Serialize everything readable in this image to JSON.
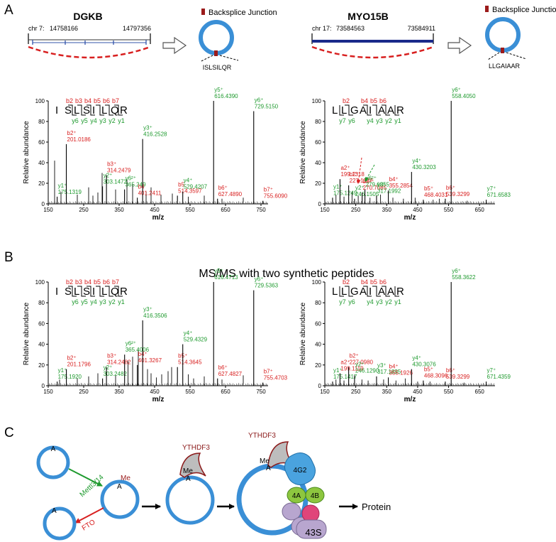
{
  "colors": {
    "red": "#d82020",
    "green": "#1e9a2e",
    "blue": "#3a8fd6",
    "darkred": "#9b1b1b",
    "navy": "#1a2a8a",
    "trans_green": "#8dc63f",
    "trans_blue": "#4aa3df",
    "pink": "#e0457a",
    "lavender": "#b8a6cf",
    "gray": "#bdbdbd"
  },
  "panel_labels": [
    "A",
    "B",
    "C"
  ],
  "panelA": {
    "genes": [
      {
        "name": "DGKB",
        "chr": "chr 7:",
        "start": "14758166",
        "end": "14797356",
        "junction_peptide": "ISLSILQR",
        "legend": "Backsplice Junction"
      },
      {
        "name": "MYO15B",
        "chr": "chr 17:",
        "start": "73584563",
        "end": "73584911",
        "junction_peptide": "LLGAIAAR",
        "legend": "Backsplice Junction"
      }
    ]
  },
  "panelB_title": "MS/MS with two synthetic peptides",
  "axis": {
    "ylabel": "Relative abundance",
    "xlabel": "m/z"
  },
  "chart_data": [
    {
      "type": "bar",
      "panel": "A-left",
      "peptide": "ISLSILQR",
      "b_ions": [
        "b2",
        "b3",
        "b4",
        "b5",
        "b6",
        "b7"
      ],
      "y_ions": [
        "y6",
        "y5",
        "y4",
        "y3",
        "y2",
        "y1"
      ],
      "xlim": [
        150,
        770
      ],
      "ylim": [
        0,
        100
      ],
      "xticks": [
        150,
        250,
        350,
        450,
        550,
        650,
        750
      ],
      "yticks": [
        0,
        20,
        40,
        60,
        80,
        100
      ],
      "labeled_peaks": [
        {
          "x": 175.1319,
          "y": 7,
          "ion": "y1⁺",
          "label": "175.1319",
          "color": "green"
        },
        {
          "x": 201.0186,
          "y": 58,
          "ion": "b2⁺",
          "label": "201.0186",
          "color": "red"
        },
        {
          "x": 303.1472,
          "y": 17,
          "ion": "y2⁺",
          "label": "303.1472",
          "color": "green"
        },
        {
          "x": 314.2479,
          "y": 28,
          "ion": "b3⁺",
          "label": "314.2479",
          "color": "red"
        },
        {
          "x": 365.249,
          "y": 14,
          "ion": "y6²⁺",
          "label": "365.249",
          "color": "green"
        },
        {
          "x": 401.2411,
          "y": 6,
          "ion": "b4",
          "label": "401.2411",
          "color": "red"
        },
        {
          "x": 416.2528,
          "y": 63,
          "ion": "y3⁺",
          "label": "416.2528",
          "color": "green"
        },
        {
          "x": 514.3597,
          "y": 8,
          "ion": "b5",
          "label": "514.3597",
          "color": "red"
        },
        {
          "x": 529.4207,
          "y": 12,
          "ion": "y4⁺",
          "label": "529.4207",
          "color": "green"
        },
        {
          "x": 616.439,
          "y": 100,
          "ion": "y5⁺",
          "label": "616.4390",
          "color": "green"
        },
        {
          "x": 627.489,
          "y": 5,
          "ion": "b6⁺",
          "label": "627.4890",
          "color": "red"
        },
        {
          "x": 729.515,
          "y": 90,
          "ion": "y6⁺",
          "label": "729.5150",
          "color": "green"
        },
        {
          "x": 755.609,
          "y": 3,
          "ion": "b7⁺",
          "label": "755.6090",
          "color": "red"
        }
      ],
      "other_peaks": [
        [
          168,
          42
        ],
        [
          186,
          12
        ],
        [
          232,
          9
        ],
        [
          264,
          16
        ],
        [
          276,
          8
        ],
        [
          290,
          11
        ],
        [
          302,
          30
        ],
        [
          340,
          14
        ],
        [
          372,
          24
        ],
        [
          388,
          19
        ],
        [
          426,
          12
        ],
        [
          440,
          16
        ],
        [
          468,
          9
        ],
        [
          500,
          10
        ],
        [
          545,
          7
        ],
        [
          590,
          8
        ],
        [
          640,
          5
        ],
        [
          700,
          6
        ]
      ]
    },
    {
      "type": "bar",
      "panel": "A-right",
      "peptide": "LLGAIAAR",
      "b_ions": [
        "b2",
        "b4",
        "b5",
        "b6"
      ],
      "y_ions": [
        "y7",
        "y6",
        "y4",
        "y3",
        "y2",
        "y1"
      ],
      "xlim": [
        150,
        700
      ],
      "ylim": [
        0,
        100
      ],
      "xticks": [
        150,
        250,
        350,
        450,
        550,
        650
      ],
      "yticks": [
        0,
        20,
        40,
        60,
        80,
        100
      ],
      "labeled_peaks": [
        {
          "x": 175.1249,
          "y": 6,
          "ion": "y1⁺",
          "label": "175.1249",
          "color": "green"
        },
        {
          "x": 199.1318,
          "y": 24,
          "ion": "a2⁺",
          "label": "199.1318",
          "color": "red"
        },
        {
          "x": 227.1127,
          "y": 18,
          "ion": "b2⁺",
          "label": "227.1127",
          "color": "red"
        },
        {
          "x": 246.1505,
          "y": 5,
          "ion": "y2⁺",
          "label": "246.1505",
          "color": "green"
        },
        {
          "x": 270.7085,
          "y": 11,
          "ion": "b6²⁺",
          "label": "270.7085",
          "color": "red"
        },
        {
          "x": 279.6855,
          "y": 14,
          "ion": "y6²⁺",
          "label": "279.6855",
          "color": "green"
        },
        {
          "x": 317.1992,
          "y": 8,
          "ion": "y3⁺",
          "label": "317.1992",
          "color": "green"
        },
        {
          "x": 355.2854,
          "y": 13,
          "ion": "b4⁺",
          "label": "355.2854",
          "color": "red"
        },
        {
          "x": 430.3203,
          "y": 31,
          "ion": "y4⁺",
          "label": "430.3203",
          "color": "green"
        },
        {
          "x": 468.4031,
          "y": 4,
          "ion": "b5⁺",
          "label": "468.4031",
          "color": "red"
        },
        {
          "x": 539.3299,
          "y": 5,
          "ion": "b6⁺",
          "label": "539.3299",
          "color": "red"
        },
        {
          "x": 558.405,
          "y": 100,
          "ion": "y6⁺",
          "label": "558.4050",
          "color": "green"
        },
        {
          "x": 671.6583,
          "y": 4,
          "ion": "y7⁺",
          "label": "671.6583",
          "color": "green"
        }
      ],
      "other_peaks": [
        [
          186,
          9
        ],
        [
          212,
          7
        ],
        [
          238,
          12
        ],
        [
          258,
          8
        ],
        [
          296,
          6
        ],
        [
          330,
          9
        ],
        [
          370,
          6
        ],
        [
          404,
          5
        ],
        [
          442,
          6
        ],
        [
          500,
          4
        ],
        [
          520,
          5
        ],
        [
          610,
          3
        ]
      ]
    },
    {
      "type": "bar",
      "panel": "B-left",
      "peptide": "ISLSILQR",
      "b_ions": [
        "b2",
        "b3",
        "b4",
        "b5",
        "b6",
        "b7"
      ],
      "y_ions": [
        "y6",
        "y5",
        "y4",
        "y3",
        "y2",
        "y1"
      ],
      "xlim": [
        150,
        770
      ],
      "ylim": [
        0,
        100
      ],
      "xticks": [
        150,
        250,
        350,
        450,
        550,
        650,
        750
      ],
      "yticks": [
        0,
        20,
        40,
        60,
        80,
        100
      ],
      "labeled_peaks": [
        {
          "x": 175.192,
          "y": 4,
          "ion": "y1⁺",
          "label": "175.1920",
          "color": "green"
        },
        {
          "x": 201.1796,
          "y": 16,
          "ion": "b2⁺",
          "label": "201.1796",
          "color": "red"
        },
        {
          "x": 303.2482,
          "y": 7,
          "ion": "y2⁺",
          "label": "303.2482",
          "color": "green"
        },
        {
          "x": 314.2482,
          "y": 18,
          "ion": "b3⁺",
          "label": "314.2482",
          "color": "red"
        },
        {
          "x": 365.4006,
          "y": 30,
          "ion": "y6²⁺",
          "label": "365.4006",
          "color": "green"
        },
        {
          "x": 401.3267,
          "y": 20,
          "ion": "b4⁺",
          "label": "401.3267",
          "color": "red"
        },
        {
          "x": 416.3506,
          "y": 63,
          "ion": "y3⁺",
          "label": "416.3506",
          "color": "green"
        },
        {
          "x": 514.3645,
          "y": 18,
          "ion": "b5⁺",
          "label": "514.3645",
          "color": "red"
        },
        {
          "x": 529.4329,
          "y": 40,
          "ion": "y4⁺",
          "label": "529.4329",
          "color": "green"
        },
        {
          "x": 616.4713,
          "y": 100,
          "ion": "y5⁺",
          "label": "616.4713",
          "color": "green"
        },
        {
          "x": 627.4827,
          "y": 7,
          "ion": "b6⁺",
          "label": "627.4827",
          "color": "red"
        },
        {
          "x": 729.5363,
          "y": 92,
          "ion": "y6⁺",
          "label": "729.5363",
          "color": "green"
        },
        {
          "x": 755.4703,
          "y": 3,
          "ion": "b7⁺",
          "label": "755.4703",
          "color": "red"
        }
      ],
      "other_peaks": [
        [
          182,
          6
        ],
        [
          232,
          7
        ],
        [
          264,
          9
        ],
        [
          290,
          12
        ],
        [
          340,
          10
        ],
        [
          375,
          24
        ],
        [
          388,
          28
        ],
        [
          404,
          35
        ],
        [
          430,
          16
        ],
        [
          440,
          12
        ],
        [
          455,
          8
        ],
        [
          470,
          11
        ],
        [
          488,
          14
        ],
        [
          498,
          18
        ],
        [
          545,
          11
        ],
        [
          560,
          7
        ],
        [
          590,
          9
        ],
        [
          640,
          6
        ],
        [
          700,
          10
        ]
      ]
    },
    {
      "type": "bar",
      "panel": "B-right",
      "peptide": "LLGAIAAR",
      "b_ions": [
        "b2",
        "b4",
        "b5",
        "b6"
      ],
      "y_ions": [
        "y7",
        "y6",
        "y4",
        "y3",
        "y2",
        "y1"
      ],
      "xlim": [
        150,
        700
      ],
      "ylim": [
        0,
        100
      ],
      "xticks": [
        150,
        250,
        350,
        450,
        550,
        650
      ],
      "yticks": [
        0,
        20,
        40,
        60,
        80,
        100
      ],
      "labeled_peaks": [
        {
          "x": 175.1417,
          "y": 4,
          "ion": "y1⁺",
          "label": "175.1417",
          "color": "green"
        },
        {
          "x": 199.1119,
          "y": 12,
          "ion": "a2⁺",
          "label": "199.1119",
          "color": "red"
        },
        {
          "x": 227.098,
          "y": 18,
          "ion": "b2⁺",
          "label": "227.0980",
          "color": "red"
        },
        {
          "x": 246.129,
          "y": 10,
          "ion": "y2⁺",
          "label": "246.1290",
          "color": "green"
        },
        {
          "x": 317.1895,
          "y": 9,
          "ion": "y3⁺",
          "label": "317.1895",
          "color": "green"
        },
        {
          "x": 355.1926,
          "y": 8,
          "ion": "b4⁺",
          "label": "355.1926",
          "color": "red"
        },
        {
          "x": 430.3076,
          "y": 16,
          "ion": "y4⁺",
          "label": "430.3076",
          "color": "green"
        },
        {
          "x": 468.3096,
          "y": 5,
          "ion": "b5⁺",
          "label": "468.3096",
          "color": "red"
        },
        {
          "x": 539.3299,
          "y": 4,
          "ion": "b6⁺",
          "label": "539.3299",
          "color": "red"
        },
        {
          "x": 558.3622,
          "y": 100,
          "ion": "y6⁺",
          "label": "558.3622",
          "color": "green"
        },
        {
          "x": 671.4359,
          "y": 4,
          "ion": "y7⁺",
          "label": "671.4359",
          "color": "green"
        }
      ],
      "other_peaks": [
        [
          186,
          6
        ],
        [
          212,
          5
        ],
        [
          270,
          6
        ],
        [
          290,
          5
        ],
        [
          340,
          6
        ],
        [
          380,
          5
        ],
        [
          410,
          7
        ],
        [
          450,
          4
        ],
        [
          490,
          4
        ],
        [
          600,
          3
        ]
      ]
    }
  ],
  "panelC": {
    "mod_a": "A",
    "mod_me": "Me",
    "reader": "YTHDF3",
    "writer": "Mettl3/14",
    "eraser": "FTO",
    "factors": [
      "4G2",
      "4A",
      "4B"
    ],
    "ribosome": "43S",
    "product": "Protein"
  }
}
